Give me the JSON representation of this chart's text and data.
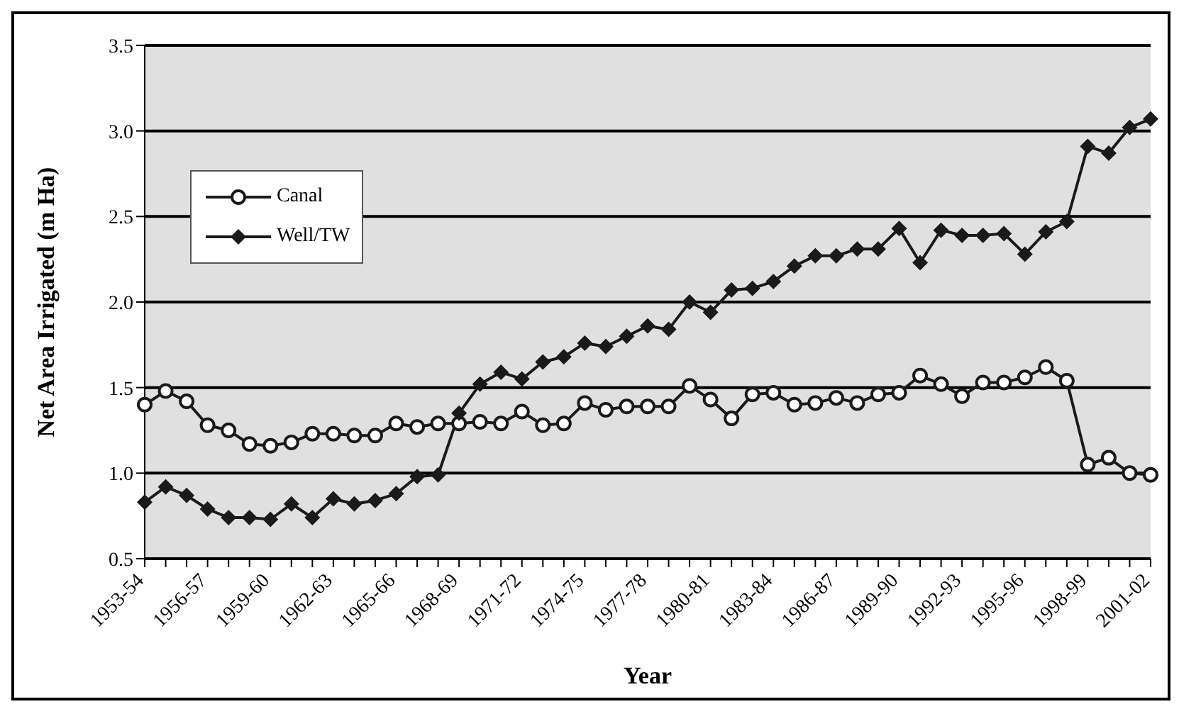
{
  "chart_data": {
    "type": "line",
    "xlabel": "Year",
    "ylabel": "Net Area Irrigated (m Ha)",
    "categories": [
      "1953-54",
      null,
      null,
      "1956-57",
      null,
      null,
      "1959-60",
      null,
      null,
      "1962-63",
      null,
      null,
      "1965-66",
      null,
      null,
      "1968-69",
      null,
      null,
      "1971-72",
      null,
      null,
      "1974-75",
      null,
      null,
      "1977-78",
      null,
      null,
      "1980-81",
      null,
      null,
      "1983-84",
      null,
      null,
      "1986-87",
      null,
      null,
      "1989-90",
      null,
      null,
      "1992-93",
      null,
      null,
      "1995-96",
      null,
      null,
      "1998-99",
      null,
      null,
      "2001-02"
    ],
    "series": [
      {
        "name": "Canal",
        "color": "#1a1a1a",
        "marker": "circle",
        "values": [
          1.4,
          1.48,
          1.42,
          1.28,
          1.25,
          1.17,
          1.16,
          1.18,
          1.23,
          1.23,
          1.22,
          1.22,
          1.29,
          1.27,
          1.29,
          1.29,
          1.3,
          1.29,
          1.36,
          1.28,
          1.29,
          1.41,
          1.37,
          1.39,
          1.39,
          1.39,
          1.51,
          1.43,
          1.32,
          1.46,
          1.47,
          1.4,
          1.41,
          1.44,
          1.41,
          1.46,
          1.47,
          1.57,
          1.52,
          1.45,
          1.53,
          1.53,
          1.56,
          1.62,
          1.54,
          1.05,
          1.09,
          1.0,
          0.99
        ]
      },
      {
        "name": "Well/TW",
        "color": "#1a1a1a",
        "marker": "diamond",
        "values": [
          0.83,
          0.92,
          0.87,
          0.79,
          0.74,
          0.74,
          0.73,
          0.82,
          0.74,
          0.85,
          0.82,
          0.84,
          0.88,
          0.98,
          0.99,
          1.35,
          1.52,
          1.59,
          1.55,
          1.65,
          1.68,
          1.76,
          1.74,
          1.8,
          1.86,
          1.84,
          2.0,
          1.94,
          2.07,
          2.08,
          2.12,
          2.21,
          2.27,
          2.27,
          2.31,
          2.31,
          2.43,
          2.23,
          2.42,
          2.39,
          2.39,
          2.4,
          2.28,
          2.41,
          2.47,
          2.91,
          2.87,
          3.02,
          3.07
        ]
      }
    ],
    "ylim": [
      0.5,
      3.5
    ],
    "yticks": [
      0.5,
      {
        "value": 1,
        "label": "1.0"
      },
      1.5,
      {
        "value": 2,
        "label": "2.0"
      },
      2.5,
      {
        "value": 3,
        "label": "3.0"
      },
      3.5
    ],
    "grid": "y",
    "legend": "top left",
    "line_style": "solid"
  }
}
